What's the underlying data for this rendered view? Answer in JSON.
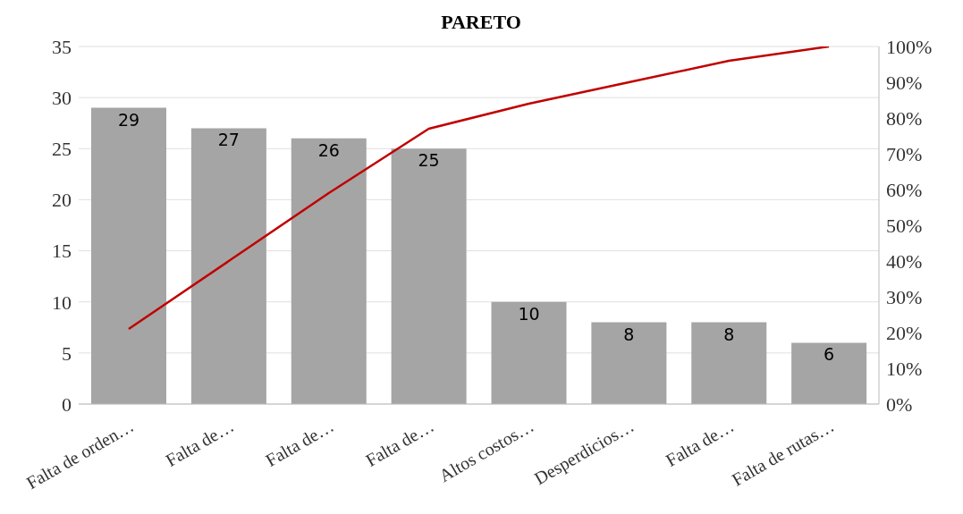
{
  "chart_data": {
    "type": "bar",
    "title": "PARETO",
    "categories": [
      "Falta de orden…",
      "Falta de…",
      "Falta de…",
      "Falta de…",
      "Altos costos…",
      "Desperdicios…",
      "Falta de…",
      "Falta de rutas…"
    ],
    "series": [
      {
        "color": "#a5a5a5",
        "values": [
          29,
          27,
          26,
          25,
          10,
          8,
          8,
          6
        ],
        "value_labels": [
          "29",
          "27",
          "26",
          "25",
          "10",
          "8",
          "8",
          "6"
        ]
      },
      {
        "type": "line",
        "color": "#c00000",
        "axis": "y2",
        "values": [
          21,
          40,
          59,
          77,
          84,
          90,
          96,
          100
        ]
      }
    ],
    "ylim": [
      0,
      35
    ],
    "yticks": [
      0,
      5,
      10,
      15,
      20,
      25,
      30,
      35
    ],
    "y2lim": [
      0,
      100
    ],
    "y2ticks": [
      {
        "value": 0,
        "label": "0%"
      },
      {
        "value": 10,
        "label": "10%"
      },
      {
        "value": 20,
        "label": "20%"
      },
      {
        "value": 30,
        "label": "30%"
      },
      {
        "value": 40,
        "label": "40%"
      },
      {
        "value": 50,
        "label": "50%"
      },
      {
        "value": 60,
        "label": "60%"
      },
      {
        "value": 70,
        "label": "70%"
      },
      {
        "value": 80,
        "label": "80%"
      },
      {
        "value": 90,
        "label": "90%"
      },
      {
        "value": 100,
        "label": "100%"
      }
    ],
    "grid": "y",
    "marker": "none",
    "legend": false
  }
}
